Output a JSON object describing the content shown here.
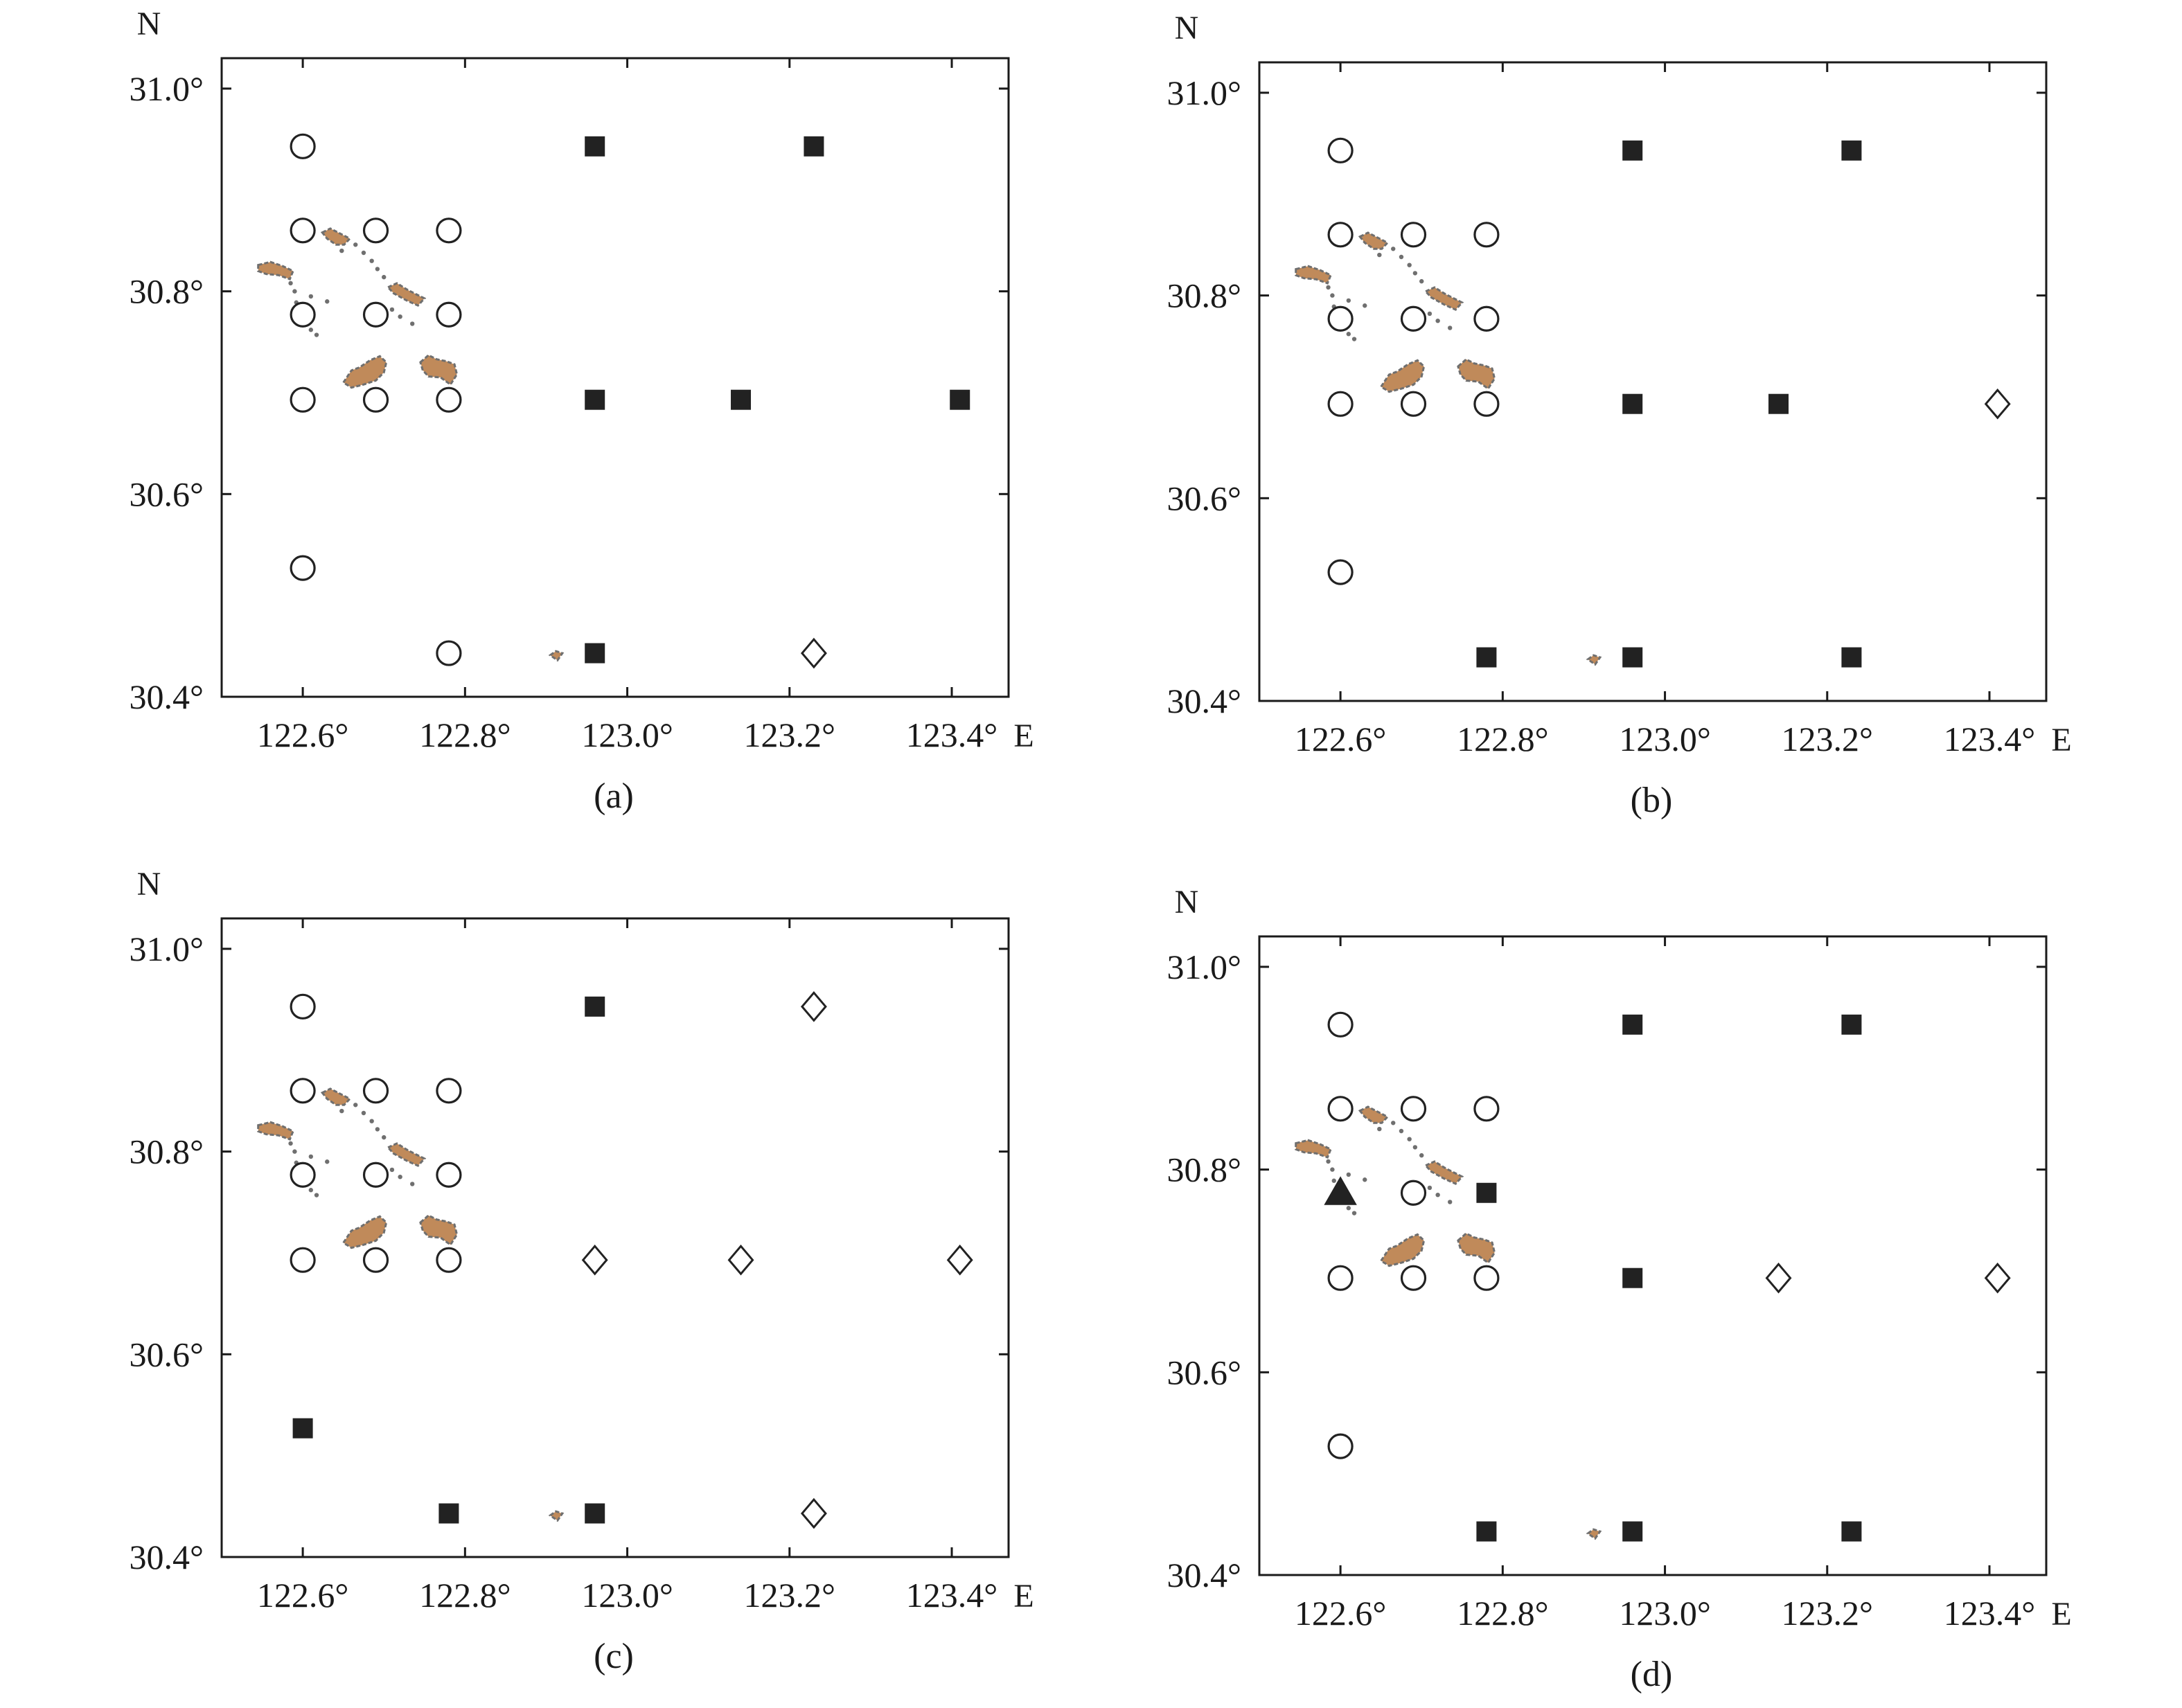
{
  "figure": {
    "lat_ticks": [
      "31.0°",
      "30.8°",
      "30.6°",
      "30.4°"
    ],
    "lon_ticks": [
      "122.6°",
      "122.8°",
      "123.0°",
      "123.2°",
      "123.4°"
    ],
    "lat_tick_values": [
      31.0,
      30.8,
      30.6,
      30.4
    ],
    "lon_tick_values": [
      122.6,
      122.8,
      123.0,
      123.2,
      123.4
    ],
    "lat_range": [
      30.4,
      31.03
    ],
    "lon_range": [
      122.5,
      123.47
    ],
    "north_label": "N",
    "east_label": "E",
    "colors": {
      "filled_square": "#222222",
      "island_fill": "#c08a5a",
      "island_outline": "#6f6f6f",
      "frame": "#1a1a1a"
    }
  },
  "panels": [
    {
      "caption": "(a)",
      "stations": [
        {
          "lon": 122.6,
          "lat": 30.943,
          "marker": "circle"
        },
        {
          "lon": 122.6,
          "lat": 30.86,
          "marker": "circle"
        },
        {
          "lon": 122.69,
          "lat": 30.86,
          "marker": "circle"
        },
        {
          "lon": 122.78,
          "lat": 30.86,
          "marker": "circle"
        },
        {
          "lon": 122.6,
          "lat": 30.777,
          "marker": "circle"
        },
        {
          "lon": 122.69,
          "lat": 30.777,
          "marker": "circle"
        },
        {
          "lon": 122.78,
          "lat": 30.777,
          "marker": "circle"
        },
        {
          "lon": 122.6,
          "lat": 30.693,
          "marker": "circle"
        },
        {
          "lon": 122.69,
          "lat": 30.693,
          "marker": "circle"
        },
        {
          "lon": 122.78,
          "lat": 30.693,
          "marker": "circle"
        },
        {
          "lon": 122.6,
          "lat": 30.527,
          "marker": "circle"
        },
        {
          "lon": 122.78,
          "lat": 30.443,
          "marker": "circle"
        },
        {
          "lon": 122.96,
          "lat": 30.943,
          "marker": "square"
        },
        {
          "lon": 123.23,
          "lat": 30.943,
          "marker": "square"
        },
        {
          "lon": 122.96,
          "lat": 30.693,
          "marker": "square"
        },
        {
          "lon": 123.14,
          "lat": 30.693,
          "marker": "square"
        },
        {
          "lon": 123.41,
          "lat": 30.693,
          "marker": "square"
        },
        {
          "lon": 122.96,
          "lat": 30.443,
          "marker": "square"
        },
        {
          "lon": 123.23,
          "lat": 30.443,
          "marker": "diamond"
        }
      ]
    },
    {
      "caption": "(b)",
      "stations": [
        {
          "lon": 122.6,
          "lat": 30.943,
          "marker": "circle"
        },
        {
          "lon": 122.6,
          "lat": 30.86,
          "marker": "circle"
        },
        {
          "lon": 122.69,
          "lat": 30.86,
          "marker": "circle"
        },
        {
          "lon": 122.78,
          "lat": 30.86,
          "marker": "circle"
        },
        {
          "lon": 122.6,
          "lat": 30.777,
          "marker": "circle"
        },
        {
          "lon": 122.69,
          "lat": 30.777,
          "marker": "circle"
        },
        {
          "lon": 122.78,
          "lat": 30.777,
          "marker": "circle"
        },
        {
          "lon": 122.6,
          "lat": 30.693,
          "marker": "circle"
        },
        {
          "lon": 122.69,
          "lat": 30.693,
          "marker": "circle"
        },
        {
          "lon": 122.78,
          "lat": 30.693,
          "marker": "circle"
        },
        {
          "lon": 122.6,
          "lat": 30.527,
          "marker": "circle"
        },
        {
          "lon": 122.96,
          "lat": 30.943,
          "marker": "square"
        },
        {
          "lon": 123.23,
          "lat": 30.943,
          "marker": "square"
        },
        {
          "lon": 122.96,
          "lat": 30.693,
          "marker": "square"
        },
        {
          "lon": 123.14,
          "lat": 30.693,
          "marker": "square"
        },
        {
          "lon": 123.41,
          "lat": 30.693,
          "marker": "diamond"
        },
        {
          "lon": 122.78,
          "lat": 30.443,
          "marker": "square"
        },
        {
          "lon": 122.96,
          "lat": 30.443,
          "marker": "square"
        },
        {
          "lon": 123.23,
          "lat": 30.443,
          "marker": "square"
        }
      ]
    },
    {
      "caption": "(c)",
      "stations": [
        {
          "lon": 122.6,
          "lat": 30.943,
          "marker": "circle"
        },
        {
          "lon": 122.6,
          "lat": 30.86,
          "marker": "circle"
        },
        {
          "lon": 122.69,
          "lat": 30.86,
          "marker": "circle"
        },
        {
          "lon": 122.78,
          "lat": 30.86,
          "marker": "circle"
        },
        {
          "lon": 122.6,
          "lat": 30.777,
          "marker": "circle"
        },
        {
          "lon": 122.69,
          "lat": 30.777,
          "marker": "circle"
        },
        {
          "lon": 122.78,
          "lat": 30.777,
          "marker": "circle"
        },
        {
          "lon": 122.6,
          "lat": 30.693,
          "marker": "circle"
        },
        {
          "lon": 122.69,
          "lat": 30.693,
          "marker": "circle"
        },
        {
          "lon": 122.78,
          "lat": 30.693,
          "marker": "circle"
        },
        {
          "lon": 122.96,
          "lat": 30.943,
          "marker": "square"
        },
        {
          "lon": 123.23,
          "lat": 30.943,
          "marker": "diamond"
        },
        {
          "lon": 122.96,
          "lat": 30.693,
          "marker": "diamond"
        },
        {
          "lon": 123.14,
          "lat": 30.693,
          "marker": "diamond"
        },
        {
          "lon": 123.41,
          "lat": 30.693,
          "marker": "diamond"
        },
        {
          "lon": 122.6,
          "lat": 30.527,
          "marker": "square"
        },
        {
          "lon": 122.78,
          "lat": 30.443,
          "marker": "square"
        },
        {
          "lon": 122.96,
          "lat": 30.443,
          "marker": "square"
        },
        {
          "lon": 123.23,
          "lat": 30.443,
          "marker": "diamond"
        }
      ]
    },
    {
      "caption": "(d)",
      "stations": [
        {
          "lon": 122.6,
          "lat": 30.943,
          "marker": "circle"
        },
        {
          "lon": 122.6,
          "lat": 30.86,
          "marker": "circle"
        },
        {
          "lon": 122.69,
          "lat": 30.86,
          "marker": "circle"
        },
        {
          "lon": 122.78,
          "lat": 30.86,
          "marker": "circle"
        },
        {
          "lon": 122.6,
          "lat": 30.777,
          "marker": "triangle"
        },
        {
          "lon": 122.69,
          "lat": 30.777,
          "marker": "circle"
        },
        {
          "lon": 122.78,
          "lat": 30.777,
          "marker": "square"
        },
        {
          "lon": 122.6,
          "lat": 30.693,
          "marker": "circle"
        },
        {
          "lon": 122.69,
          "lat": 30.693,
          "marker": "circle"
        },
        {
          "lon": 122.78,
          "lat": 30.693,
          "marker": "circle"
        },
        {
          "lon": 122.6,
          "lat": 30.527,
          "marker": "circle"
        },
        {
          "lon": 122.96,
          "lat": 30.943,
          "marker": "square"
        },
        {
          "lon": 123.23,
          "lat": 30.943,
          "marker": "square"
        },
        {
          "lon": 122.96,
          "lat": 30.693,
          "marker": "square"
        },
        {
          "lon": 123.14,
          "lat": 30.693,
          "marker": "diamond"
        },
        {
          "lon": 123.41,
          "lat": 30.693,
          "marker": "diamond"
        },
        {
          "lon": 122.78,
          "lat": 30.443,
          "marker": "square"
        },
        {
          "lon": 122.96,
          "lat": 30.443,
          "marker": "square"
        },
        {
          "lon": 123.23,
          "lat": 30.443,
          "marker": "square"
        }
      ]
    }
  ]
}
